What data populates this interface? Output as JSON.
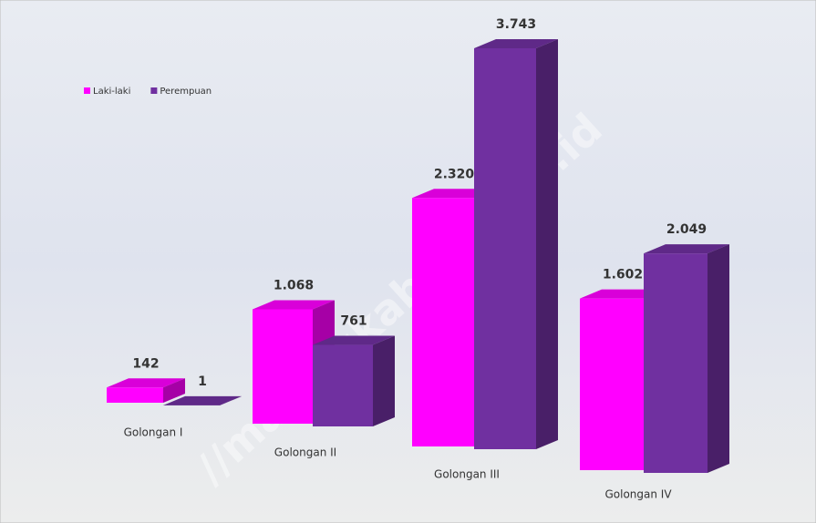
{
  "chart_data": {
    "type": "bar3d",
    "categories": [
      "Golongan I",
      "Golongan II",
      "Golongan III",
      "Golongan IV"
    ],
    "series": [
      {
        "name": "Laki-laki",
        "color": "#ff00ff",
        "values": [
          142,
          1068,
          2320,
          1602
        ],
        "value_labels": [
          "142",
          "1.068",
          "2.320",
          "1.602"
        ]
      },
      {
        "name": "Perempuan",
        "color": "#7030a0",
        "values": [
          1,
          761,
          3743,
          2049
        ],
        "value_labels": [
          "1",
          "761",
          "3.743",
          "2.049"
        ]
      }
    ],
    "legend": "top-left",
    "watermark": "//malangkab.bps.go.id"
  }
}
